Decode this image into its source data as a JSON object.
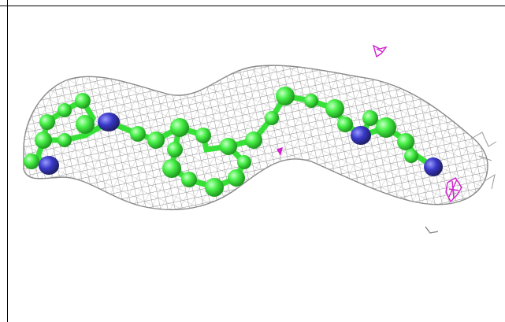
{
  "scene": {
    "background": "#ffffff",
    "colors": {
      "mesh": "#9a9a9a",
      "carbon": "#3cff3c",
      "carbon_dark": "#1faa1f",
      "nitrogen": "#3838c8",
      "difference_density": "#d020d0"
    },
    "objects": [
      "electron-density-mesh",
      "ligand-ball-and-stick",
      "difference-density-contours"
    ]
  }
}
